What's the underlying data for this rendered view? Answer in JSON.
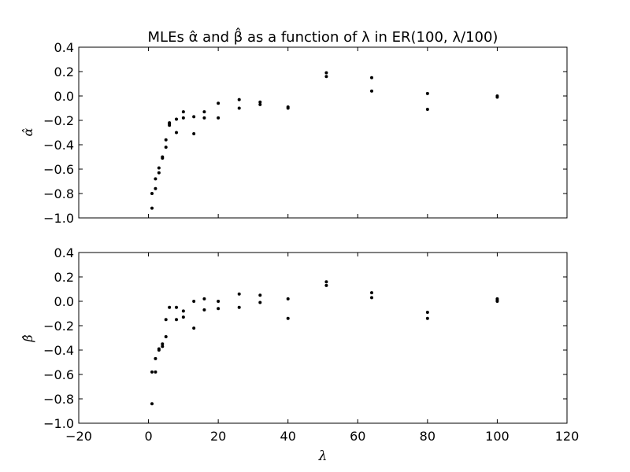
{
  "chart_data": [
    {
      "type": "scatter",
      "title": "MLEs α̂ and β̂ as a function of λ in ER(100, λ/100)",
      "xlabel": "",
      "ylabel": "α̂",
      "xlim": [
        -20,
        120
      ],
      "ylim": [
        -1.0,
        0.4
      ],
      "xticks": [
        "−20",
        "0",
        "20",
        "40",
        "60",
        "80",
        "100",
        "120"
      ],
      "xticks_visible": false,
      "yticks": [
        "−1.0",
        "−0.8",
        "−0.6",
        "−0.4",
        "−0.2",
        "0.0",
        "0.2",
        "0.4"
      ],
      "grid": false,
      "color": "#000000",
      "points": [
        {
          "x": 1,
          "y": -0.92
        },
        {
          "x": 1,
          "y": -0.8
        },
        {
          "x": 2,
          "y": -0.76
        },
        {
          "x": 2,
          "y": -0.68
        },
        {
          "x": 3,
          "y": -0.63
        },
        {
          "x": 3,
          "y": -0.59
        },
        {
          "x": 4,
          "y": -0.51
        },
        {
          "x": 4,
          "y": -0.5
        },
        {
          "x": 5,
          "y": -0.42
        },
        {
          "x": 5,
          "y": -0.36
        },
        {
          "x": 6,
          "y": -0.24
        },
        {
          "x": 6,
          "y": -0.23
        },
        {
          "x": 6,
          "y": -0.22
        },
        {
          "x": 8,
          "y": -0.3
        },
        {
          "x": 8,
          "y": -0.19
        },
        {
          "x": 10,
          "y": -0.18
        },
        {
          "x": 10,
          "y": -0.13
        },
        {
          "x": 13,
          "y": -0.31
        },
        {
          "x": 13,
          "y": -0.17
        },
        {
          "x": 16,
          "y": -0.18
        },
        {
          "x": 16,
          "y": -0.13
        },
        {
          "x": 20,
          "y": -0.18
        },
        {
          "x": 20,
          "y": -0.06
        },
        {
          "x": 26,
          "y": -0.1
        },
        {
          "x": 26,
          "y": -0.03
        },
        {
          "x": 32,
          "y": -0.07
        },
        {
          "x": 32,
          "y": -0.05
        },
        {
          "x": 40,
          "y": -0.1
        },
        {
          "x": 40,
          "y": -0.09
        },
        {
          "x": 51,
          "y": 0.16
        },
        {
          "x": 51,
          "y": 0.19
        },
        {
          "x": 64,
          "y": 0.04
        },
        {
          "x": 64,
          "y": 0.15
        },
        {
          "x": 80,
          "y": -0.11
        },
        {
          "x": 80,
          "y": 0.02
        },
        {
          "x": 100,
          "y": -0.01
        },
        {
          "x": 100,
          "y": 0.0
        }
      ]
    },
    {
      "type": "scatter",
      "title": "",
      "xlabel": "λ",
      "ylabel": "β̂",
      "xlim": [
        -20,
        120
      ],
      "ylim": [
        -1.0,
        0.4
      ],
      "xticks": [
        "−20",
        "0",
        "20",
        "40",
        "60",
        "80",
        "100",
        "120"
      ],
      "xticks_visible": true,
      "yticks": [
        "−1.0",
        "−0.8",
        "−0.6",
        "−0.4",
        "−0.2",
        "0.0",
        "0.2",
        "0.4"
      ],
      "grid": false,
      "color": "#000000",
      "points": [
        {
          "x": 1,
          "y": -0.84
        },
        {
          "x": 1,
          "y": -0.58
        },
        {
          "x": 2,
          "y": -0.58
        },
        {
          "x": 2,
          "y": -0.47
        },
        {
          "x": 3,
          "y": -0.4
        },
        {
          "x": 3,
          "y": -0.39
        },
        {
          "x": 4,
          "y": -0.37
        },
        {
          "x": 4,
          "y": -0.35
        },
        {
          "x": 5,
          "y": -0.29
        },
        {
          "x": 5,
          "y": -0.15
        },
        {
          "x": 6,
          "y": -0.05
        },
        {
          "x": 8,
          "y": -0.15
        },
        {
          "x": 8,
          "y": -0.05
        },
        {
          "x": 10,
          "y": -0.13
        },
        {
          "x": 10,
          "y": -0.08
        },
        {
          "x": 13,
          "y": -0.22
        },
        {
          "x": 13,
          "y": 0.0
        },
        {
          "x": 16,
          "y": -0.07
        },
        {
          "x": 16,
          "y": 0.02
        },
        {
          "x": 20,
          "y": -0.06
        },
        {
          "x": 20,
          "y": 0.0
        },
        {
          "x": 26,
          "y": -0.05
        },
        {
          "x": 26,
          "y": 0.06
        },
        {
          "x": 32,
          "y": -0.01
        },
        {
          "x": 32,
          "y": 0.05
        },
        {
          "x": 40,
          "y": -0.14
        },
        {
          "x": 40,
          "y": 0.02
        },
        {
          "x": 51,
          "y": 0.13
        },
        {
          "x": 51,
          "y": 0.16
        },
        {
          "x": 64,
          "y": 0.03
        },
        {
          "x": 64,
          "y": 0.07
        },
        {
          "x": 80,
          "y": -0.14
        },
        {
          "x": 80,
          "y": -0.09
        },
        {
          "x": 100,
          "y": 0.0
        },
        {
          "x": 100,
          "y": 0.01
        },
        {
          "x": 100,
          "y": 0.02
        }
      ]
    }
  ]
}
